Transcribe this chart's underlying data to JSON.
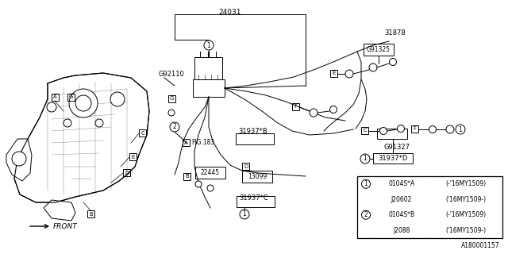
{
  "bg_color": "#ffffff",
  "watermark": "A180001157",
  "front_label": "FRONT",
  "parts": {
    "24031": "24031",
    "G92110": "G92110",
    "G91325": "G91325",
    "G91327": "G91327",
    "31878": "31878",
    "31937B": "31937*B",
    "31937C": "31937*C",
    "31937D": "31937*D",
    "22445": "22445",
    "13099": "13099",
    "FIG183": "FIG.183"
  },
  "legend_rows": [
    {
      "circle": "1",
      "code": "0104S*A",
      "year": "(-'16MY1509)"
    },
    {
      "circle": "",
      "code": "J20602",
      "year": "('16MY1509-)"
    },
    {
      "circle": "2",
      "code": "0104S*B",
      "year": "(-'16MY1509)"
    },
    {
      "circle": "",
      "code": "J2088",
      "year": "('16MY1509-)"
    }
  ]
}
